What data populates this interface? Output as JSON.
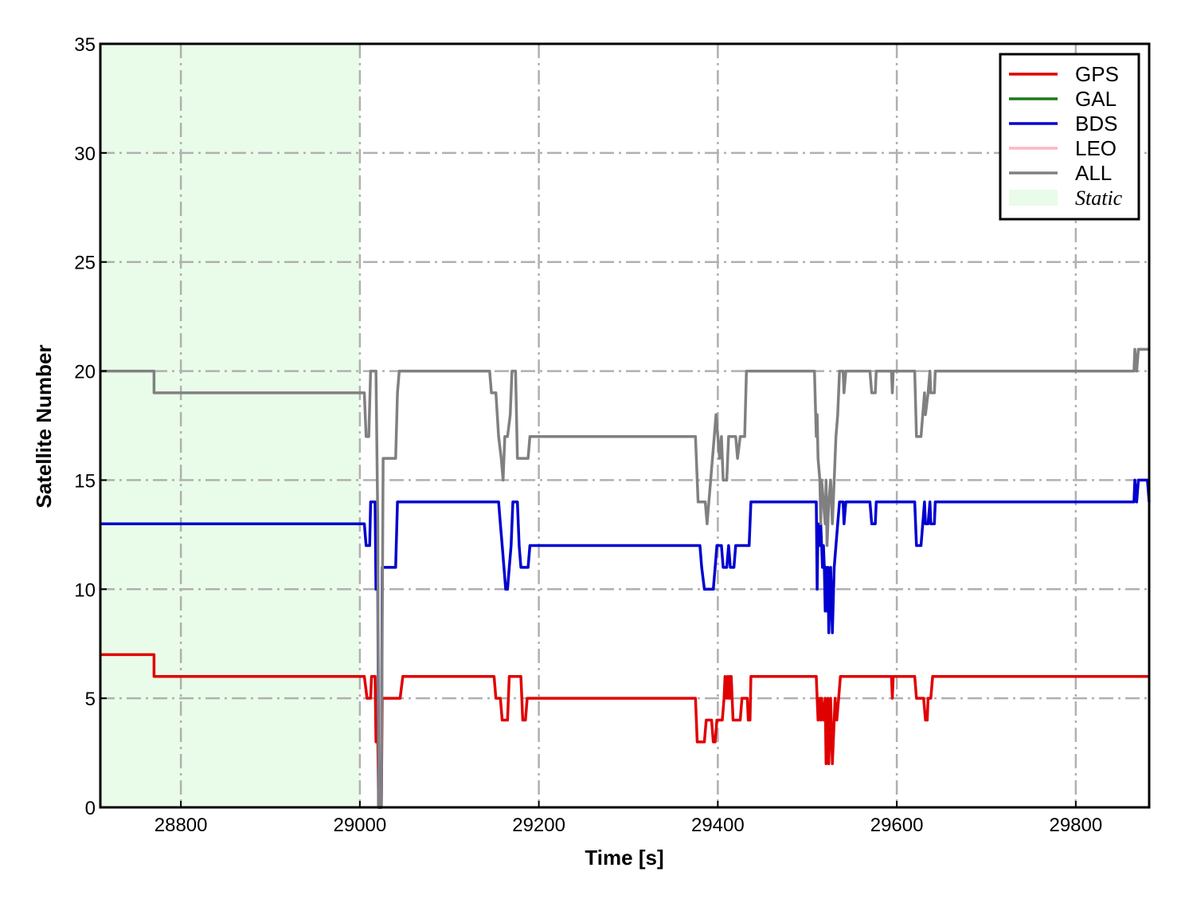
{
  "chart_data": {
    "type": "line",
    "xlabel": "Time [s]",
    "ylabel": "Satellite Number",
    "xlim": [
      28710,
      29882
    ],
    "ylim": [
      0,
      35
    ],
    "xticks": [
      28800,
      29000,
      29200,
      29400,
      29600,
      29800
    ],
    "yticks": [
      0,
      5,
      10,
      15,
      20,
      25,
      30,
      35
    ],
    "grid": true,
    "legend_position": "top-right",
    "shaded_regions": [
      {
        "name": "Static",
        "x": [
          28710,
          29000
        ],
        "color": "#e9fce9"
      }
    ],
    "series": [
      {
        "name": "GPS",
        "color": "#e00000",
        "points": [
          [
            28710,
            7
          ],
          [
            28770,
            7
          ],
          [
            28770,
            6
          ],
          [
            29005,
            6
          ],
          [
            29008,
            5
          ],
          [
            29012,
            5
          ],
          [
            29013,
            6
          ],
          [
            29017,
            6
          ],
          [
            29018,
            3
          ],
          [
            29020,
            3
          ],
          [
            29021,
            0
          ],
          [
            29024,
            0
          ],
          [
            29025,
            5
          ],
          [
            29045,
            5
          ],
          [
            29048,
            6
          ],
          [
            29150,
            6
          ],
          [
            29152,
            5
          ],
          [
            29157,
            5
          ],
          [
            29159,
            4
          ],
          [
            29165,
            4
          ],
          [
            29167,
            6
          ],
          [
            29180,
            6
          ],
          [
            29182,
            4
          ],
          [
            29185,
            4
          ],
          [
            29187,
            5
          ],
          [
            29375,
            5
          ],
          [
            29377,
            3
          ],
          [
            29385,
            3
          ],
          [
            29387,
            4
          ],
          [
            29393,
            4
          ],
          [
            29395,
            3
          ],
          [
            29397,
            3
          ],
          [
            29399,
            4
          ],
          [
            29405,
            4
          ],
          [
            29407,
            5
          ],
          [
            29408,
            6
          ],
          [
            29410,
            5
          ],
          [
            29411,
            6
          ],
          [
            29412,
            5
          ],
          [
            29413,
            6
          ],
          [
            29414,
            5
          ],
          [
            29415,
            6
          ],
          [
            29417,
            4
          ],
          [
            29425,
            4
          ],
          [
            29427,
            5
          ],
          [
            29433,
            5
          ],
          [
            29434,
            4
          ],
          [
            29436,
            4
          ],
          [
            29437,
            6
          ],
          [
            29510,
            6
          ],
          [
            29512,
            4
          ],
          [
            29514,
            5
          ],
          [
            29515,
            4
          ],
          [
            29516,
            5
          ],
          [
            29518,
            4
          ],
          [
            29520,
            5
          ],
          [
            29521,
            2
          ],
          [
            29522,
            4
          ],
          [
            29523,
            5
          ],
          [
            29524,
            2
          ],
          [
            29526,
            5
          ],
          [
            29528,
            2
          ],
          [
            29530,
            4
          ],
          [
            29531,
            5
          ],
          [
            29533,
            4
          ],
          [
            29535,
            5
          ],
          [
            29537,
            6
          ],
          [
            29594,
            6
          ],
          [
            29595,
            5
          ],
          [
            29596,
            6
          ],
          [
            29620,
            6
          ],
          [
            29622,
            5
          ],
          [
            29630,
            5
          ],
          [
            29632,
            4
          ],
          [
            29634,
            4
          ],
          [
            29635,
            5
          ],
          [
            29638,
            5
          ],
          [
            29640,
            6
          ],
          [
            29882,
            6
          ]
        ]
      },
      {
        "name": "GAL",
        "color": "#1a7a1a",
        "points": []
      },
      {
        "name": "BDS",
        "color": "#0000d0",
        "points": [
          [
            28710,
            13
          ],
          [
            29005,
            13
          ],
          [
            29007,
            12
          ],
          [
            29011,
            12
          ],
          [
            29012,
            14
          ],
          [
            29017,
            14
          ],
          [
            29018,
            10
          ],
          [
            29020,
            10
          ],
          [
            29021,
            0
          ],
          [
            29024,
            0
          ],
          [
            29025,
            11
          ],
          [
            29040,
            11
          ],
          [
            29042,
            14
          ],
          [
            29155,
            14
          ],
          [
            29157,
            13
          ],
          [
            29159,
            12
          ],
          [
            29161,
            11
          ],
          [
            29163,
            10
          ],
          [
            29165,
            10
          ],
          [
            29167,
            11
          ],
          [
            29169,
            12
          ],
          [
            29171,
            14
          ],
          [
            29176,
            14
          ],
          [
            29178,
            12
          ],
          [
            29180,
            11
          ],
          [
            29188,
            11
          ],
          [
            29190,
            12
          ],
          [
            29380,
            12
          ],
          [
            29382,
            11
          ],
          [
            29385,
            10
          ],
          [
            29395,
            10
          ],
          [
            29397,
            11
          ],
          [
            29399,
            12
          ],
          [
            29404,
            12
          ],
          [
            29406,
            11
          ],
          [
            29410,
            11
          ],
          [
            29412,
            12
          ],
          [
            29414,
            11
          ],
          [
            29418,
            11
          ],
          [
            29420,
            12
          ],
          [
            29435,
            12
          ],
          [
            29437,
            14
          ],
          [
            29510,
            14
          ],
          [
            29511,
            10
          ],
          [
            29512,
            13
          ],
          [
            29514,
            12
          ],
          [
            29515,
            13
          ],
          [
            29516,
            12
          ],
          [
            29517,
            11
          ],
          [
            29518,
            12
          ],
          [
            29519,
            11
          ],
          [
            29520,
            9
          ],
          [
            29521,
            11
          ],
          [
            29522,
            9
          ],
          [
            29523,
            11
          ],
          [
            29524,
            8
          ],
          [
            29526,
            11
          ],
          [
            29528,
            8
          ],
          [
            29530,
            11
          ],
          [
            29532,
            12
          ],
          [
            29534,
            13
          ],
          [
            29536,
            14
          ],
          [
            29540,
            14
          ],
          [
            29541,
            13
          ],
          [
            29543,
            14
          ],
          [
            29570,
            14
          ],
          [
            29572,
            13
          ],
          [
            29576,
            13
          ],
          [
            29577,
            14
          ],
          [
            29620,
            14
          ],
          [
            29622,
            12
          ],
          [
            29627,
            12
          ],
          [
            29629,
            13
          ],
          [
            29631,
            14
          ],
          [
            29632,
            13
          ],
          [
            29635,
            13
          ],
          [
            29637,
            14
          ],
          [
            29638,
            13
          ],
          [
            29642,
            13
          ],
          [
            29643,
            14
          ],
          [
            29865,
            14
          ],
          [
            29866,
            15
          ],
          [
            29868,
            14
          ],
          [
            29870,
            15
          ],
          [
            29880,
            15
          ],
          [
            29882,
            14
          ]
        ]
      },
      {
        "name": "LEO",
        "color": "#ffb6c1",
        "points": []
      },
      {
        "name": "ALL",
        "color": "#808080",
        "points": [
          [
            28710,
            20
          ],
          [
            28770,
            20
          ],
          [
            28770,
            19
          ],
          [
            29005,
            19
          ],
          [
            29007,
            17
          ],
          [
            29010,
            17
          ],
          [
            29012,
            20
          ],
          [
            29018,
            20
          ],
          [
            29020,
            13
          ],
          [
            29021,
            0
          ],
          [
            29024,
            0
          ],
          [
            29026,
            16
          ],
          [
            29040,
            16
          ],
          [
            29042,
            19
          ],
          [
            29044,
            20
          ],
          [
            29145,
            20
          ],
          [
            29147,
            19
          ],
          [
            29152,
            19
          ],
          [
            29155,
            17
          ],
          [
            29158,
            16
          ],
          [
            29160,
            15
          ],
          [
            29162,
            17
          ],
          [
            29165,
            17
          ],
          [
            29168,
            18
          ],
          [
            29170,
            20
          ],
          [
            29174,
            20
          ],
          [
            29176,
            16
          ],
          [
            29188,
            16
          ],
          [
            29190,
            17
          ],
          [
            29375,
            17
          ],
          [
            29378,
            14
          ],
          [
            29386,
            14
          ],
          [
            29388,
            13
          ],
          [
            29390,
            14
          ],
          [
            29392,
            15
          ],
          [
            29396,
            17
          ],
          [
            29398,
            18
          ],
          [
            29400,
            17
          ],
          [
            29402,
            16
          ],
          [
            29404,
            17
          ],
          [
            29406,
            15
          ],
          [
            29410,
            15
          ],
          [
            29412,
            17
          ],
          [
            29420,
            17
          ],
          [
            29422,
            16
          ],
          [
            29425,
            17
          ],
          [
            29430,
            17
          ],
          [
            29432,
            20
          ],
          [
            29508,
            20
          ],
          [
            29510,
            17
          ],
          [
            29511,
            18
          ],
          [
            29512,
            16
          ],
          [
            29514,
            15
          ],
          [
            29515,
            13
          ],
          [
            29516,
            15
          ],
          [
            29518,
            14
          ],
          [
            29520,
            13
          ],
          [
            29521,
            15
          ],
          [
            29522,
            12
          ],
          [
            29524,
            14
          ],
          [
            29526,
            15
          ],
          [
            29528,
            13
          ],
          [
            29530,
            15
          ],
          [
            29532,
            17
          ],
          [
            29534,
            18
          ],
          [
            29536,
            20
          ],
          [
            29540,
            20
          ],
          [
            29541,
            19
          ],
          [
            29543,
            20
          ],
          [
            29570,
            20
          ],
          [
            29572,
            19
          ],
          [
            29576,
            19
          ],
          [
            29577,
            20
          ],
          [
            29594,
            20
          ],
          [
            29595,
            19
          ],
          [
            29596,
            20
          ],
          [
            29620,
            20
          ],
          [
            29622,
            17
          ],
          [
            29627,
            17
          ],
          [
            29629,
            18
          ],
          [
            29631,
            19
          ],
          [
            29632,
            18
          ],
          [
            29635,
            19
          ],
          [
            29637,
            20
          ],
          [
            29638,
            19
          ],
          [
            29642,
            19
          ],
          [
            29643,
            20
          ],
          [
            29865,
            20
          ],
          [
            29866,
            21
          ],
          [
            29868,
            20
          ],
          [
            29870,
            21
          ],
          [
            29882,
            21
          ]
        ]
      }
    ]
  }
}
